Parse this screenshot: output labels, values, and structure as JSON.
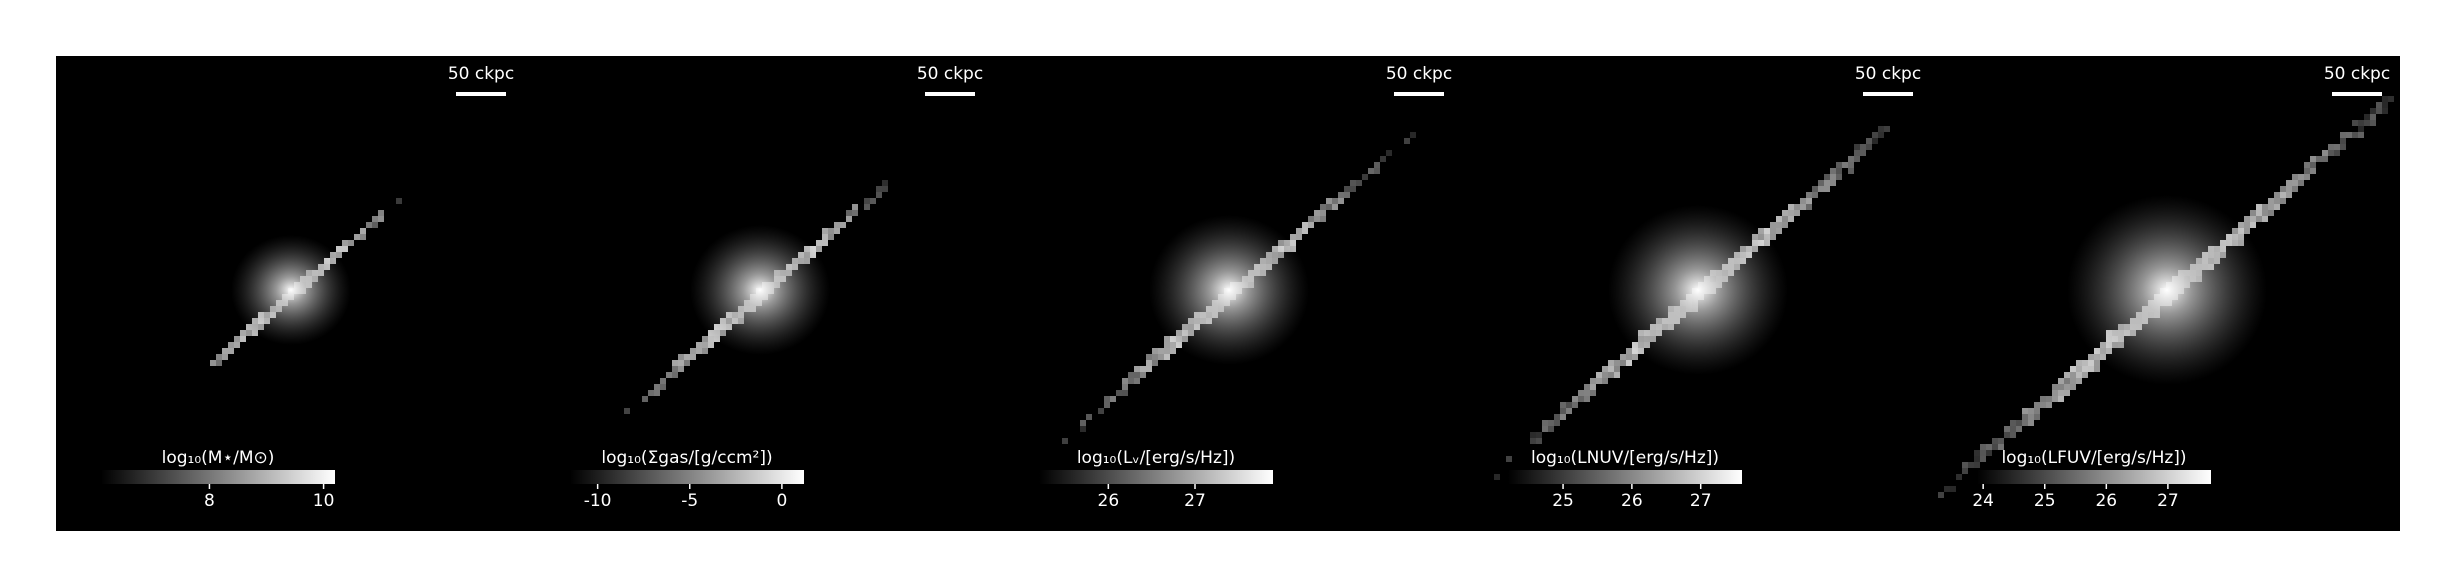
{
  "chart_data": [
    {
      "type": "image",
      "scalebar": "50 ckpc",
      "colorbar_label": "log₁₀(M⋆/M⊙)",
      "clim": [
        6.1,
        10.2
      ],
      "cticks": [
        8,
        10
      ]
    },
    {
      "type": "image",
      "scalebar": "50 ckpc",
      "colorbar_label": "log₁₀(Σgas/[g/ccm²])",
      "clim": [
        -11.5,
        1.2
      ],
      "cticks": [
        -10,
        -5,
        0
      ]
    },
    {
      "type": "image",
      "scalebar": "50 ckpc",
      "colorbar_label": "log₁₀(Lᵥ/[erg/s/Hz])",
      "clim": [
        25.2,
        27.9
      ],
      "cticks": [
        26,
        27
      ]
    },
    {
      "type": "image",
      "scalebar": "50 ckpc",
      "colorbar_label": "log₁₀(LNUV/[erg/s/Hz])",
      "clim": [
        24.2,
        27.6
      ],
      "cticks": [
        25,
        26,
        27
      ]
    },
    {
      "type": "image",
      "scalebar": "50 ckpc",
      "colorbar_label": "log₁₀(LFUV/[erg/s/Hz])",
      "clim": [
        23.9,
        27.7
      ],
      "cticks": [
        24,
        25,
        26,
        27
      ]
    }
  ]
}
